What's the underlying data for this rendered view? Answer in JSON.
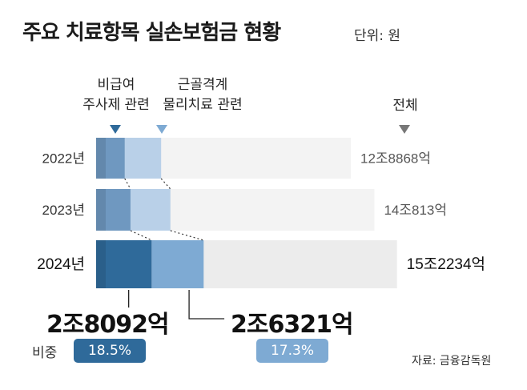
{
  "title": "주요 치료항목 실손보험금 현황",
  "unit": "단위: 원",
  "headers": {
    "injection": [
      "비급여",
      "주사제 관련"
    ],
    "physio": [
      "근골격계",
      "물리치료 관련"
    ],
    "total": "전체"
  },
  "share_label": "비중",
  "source": "자료: 금융감독원",
  "colors": {
    "injection": "#2f6a9a",
    "physio": "#7eaad3",
    "total_bg": "#f3f3f3"
  },
  "chart_data": {
    "type": "bar",
    "orientation": "horizontal-stacked",
    "categories": [
      "2022년",
      "2023년",
      "2024년"
    ],
    "total_labels": [
      "12조8868억",
      "14조813억",
      "15조2234억"
    ],
    "totals_eok": [
      128868,
      140813,
      152234
    ],
    "injection_eok": [
      14500,
      17400,
      28092
    ],
    "physio_eok": [
      18400,
      20200,
      26321
    ],
    "highlight": {
      "injection_label": "2조8092억",
      "physio_label": "2조6321억",
      "injection_share": "18.5%",
      "physio_share": "17.3%"
    }
  }
}
